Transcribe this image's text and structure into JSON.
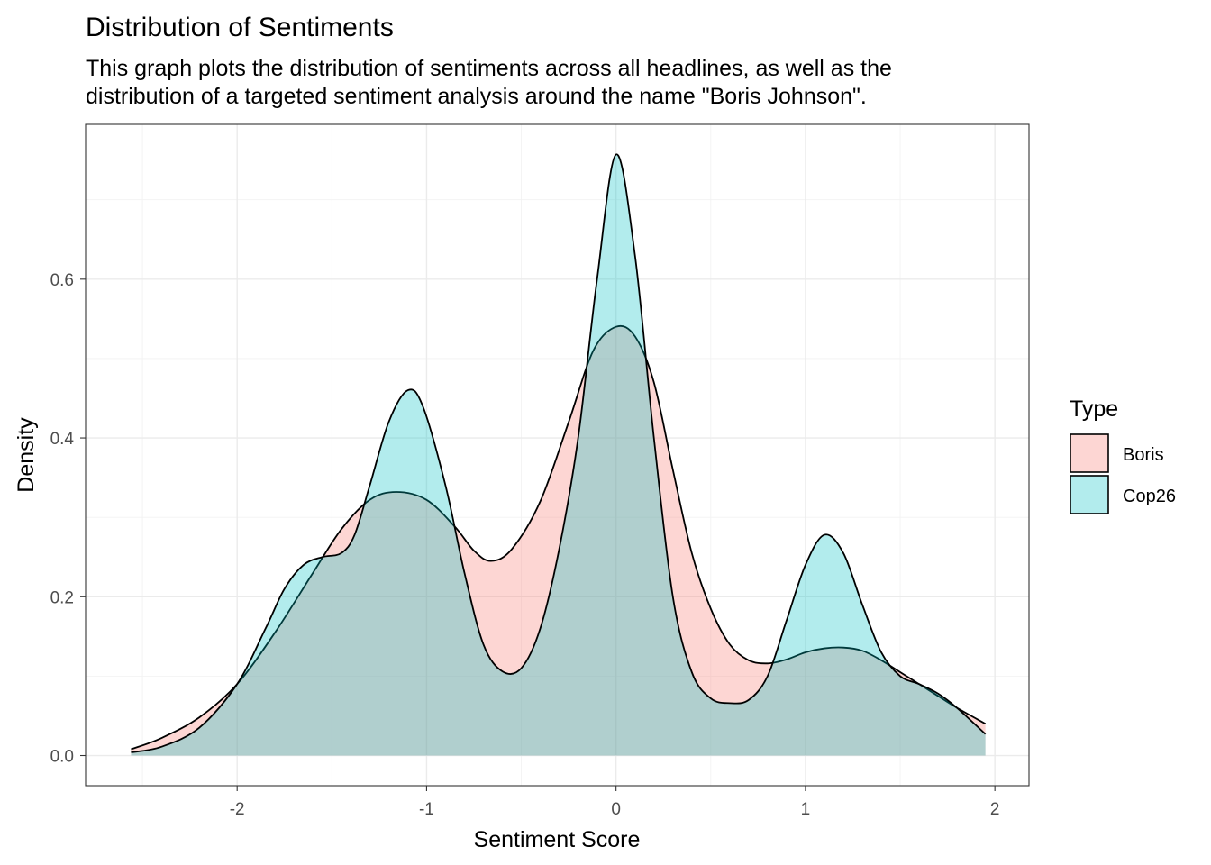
{
  "chart_data": {
    "type": "area",
    "title": "Distribution of Sentiments",
    "subtitle_lines": [
      "This graph plots the distribution of sentiments across all headlines, as well as the",
      "distribution of a targeted sentiment analysis around the name \"Boris Johnson\"."
    ],
    "xlabel": "Sentiment Score",
    "ylabel": "Density",
    "xlim": [
      -2.8,
      2.18
    ],
    "ylim": [
      -0.038,
      0.795
    ],
    "x_ticks": [
      -2,
      -1,
      0,
      1,
      2
    ],
    "x_tick_labels": [
      "-2",
      "-1",
      "0",
      "1",
      "2"
    ],
    "y_ticks": [
      0.0,
      0.2,
      0.4,
      0.6
    ],
    "y_tick_labels": [
      "0.0",
      "0.2",
      "0.4",
      "0.6"
    ],
    "grid": true,
    "legend": {
      "title": "Type",
      "position": "right",
      "entries": [
        "Boris",
        "Cop26"
      ]
    },
    "series": [
      {
        "name": "Boris",
        "fill": "#F8766D",
        "fill_opacity": 0.3,
        "stroke": "#000000",
        "points": [
          [
            -2.56,
            0.008
          ],
          [
            -2.4,
            0.022
          ],
          [
            -2.2,
            0.048
          ],
          [
            -2.0,
            0.09
          ],
          [
            -1.8,
            0.155
          ],
          [
            -1.6,
            0.23
          ],
          [
            -1.45,
            0.285
          ],
          [
            -1.3,
            0.322
          ],
          [
            -1.16,
            0.332
          ],
          [
            -1.0,
            0.322
          ],
          [
            -0.85,
            0.288
          ],
          [
            -0.75,
            0.258
          ],
          [
            -0.66,
            0.245
          ],
          [
            -0.55,
            0.26
          ],
          [
            -0.4,
            0.32
          ],
          [
            -0.25,
            0.42
          ],
          [
            -0.12,
            0.51
          ],
          [
            0.0,
            0.54
          ],
          [
            0.1,
            0.528
          ],
          [
            0.2,
            0.47
          ],
          [
            0.3,
            0.36
          ],
          [
            0.4,
            0.255
          ],
          [
            0.5,
            0.185
          ],
          [
            0.6,
            0.14
          ],
          [
            0.7,
            0.12
          ],
          [
            0.8,
            0.116
          ],
          [
            0.9,
            0.121
          ],
          [
            1.0,
            0.13
          ],
          [
            1.1,
            0.135
          ],
          [
            1.2,
            0.136
          ],
          [
            1.3,
            0.132
          ],
          [
            1.4,
            0.12
          ],
          [
            1.5,
            0.105
          ],
          [
            1.6,
            0.09
          ],
          [
            1.7,
            0.075
          ],
          [
            1.8,
            0.06
          ],
          [
            1.95,
            0.04
          ]
        ]
      },
      {
        "name": "Cop26",
        "fill": "#00BFC4",
        "fill_opacity": 0.3,
        "stroke": "#000000",
        "points": [
          [
            -2.56,
            0.004
          ],
          [
            -2.4,
            0.011
          ],
          [
            -2.2,
            0.035
          ],
          [
            -2.0,
            0.09
          ],
          [
            -1.85,
            0.16
          ],
          [
            -1.75,
            0.21
          ],
          [
            -1.65,
            0.24
          ],
          [
            -1.55,
            0.25
          ],
          [
            -1.45,
            0.255
          ],
          [
            -1.38,
            0.278
          ],
          [
            -1.3,
            0.34
          ],
          [
            -1.2,
            0.42
          ],
          [
            -1.1,
            0.46
          ],
          [
            -1.02,
            0.44
          ],
          [
            -0.9,
            0.34
          ],
          [
            -0.8,
            0.23
          ],
          [
            -0.7,
            0.14
          ],
          [
            -0.6,
            0.106
          ],
          [
            -0.5,
            0.11
          ],
          [
            -0.4,
            0.16
          ],
          [
            -0.3,
            0.26
          ],
          [
            -0.2,
            0.4
          ],
          [
            -0.1,
            0.6
          ],
          [
            0.0,
            0.757
          ],
          [
            0.1,
            0.63
          ],
          [
            0.2,
            0.4
          ],
          [
            0.3,
            0.2
          ],
          [
            0.4,
            0.105
          ],
          [
            0.5,
            0.072
          ],
          [
            0.6,
            0.066
          ],
          [
            0.7,
            0.07
          ],
          [
            0.8,
            0.1
          ],
          [
            0.9,
            0.17
          ],
          [
            1.0,
            0.24
          ],
          [
            1.1,
            0.278
          ],
          [
            1.2,
            0.255
          ],
          [
            1.3,
            0.19
          ],
          [
            1.4,
            0.13
          ],
          [
            1.5,
            0.1
          ],
          [
            1.6,
            0.09
          ],
          [
            1.7,
            0.078
          ],
          [
            1.8,
            0.06
          ],
          [
            1.95,
            0.027
          ]
        ]
      }
    ]
  }
}
